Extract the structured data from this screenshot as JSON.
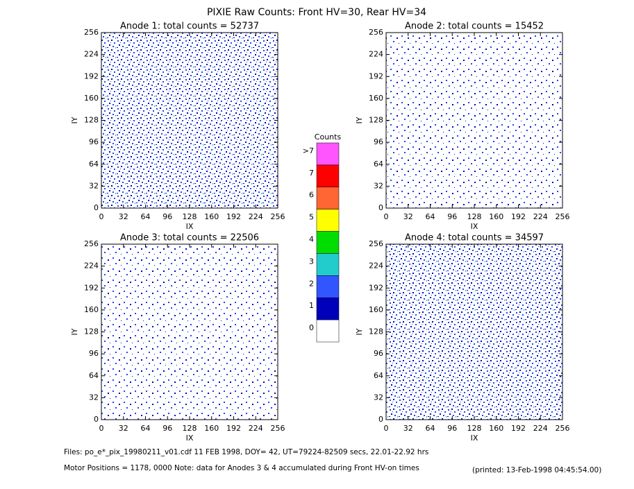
{
  "title": "PIXIE Raw Counts:  Front HV=30, Rear HV=34",
  "chart_data": [
    {
      "type": "heatmap",
      "title": "Anode 1: total counts = 52737",
      "xlabel": "IX",
      "ylabel": "IY",
      "xlim": [
        0,
        256
      ],
      "ylim": [
        0,
        256
      ],
      "xticks": [
        0,
        32,
        64,
        96,
        128,
        160,
        192,
        224,
        256
      ],
      "yticks": [
        0,
        32,
        64,
        96,
        128,
        160,
        192,
        224,
        256
      ],
      "density": "high"
    },
    {
      "type": "heatmap",
      "title": "Anode 2: total counts = 15452",
      "xlabel": "IX",
      "ylabel": "IY",
      "xlim": [
        0,
        256
      ],
      "ylim": [
        0,
        256
      ],
      "xticks": [
        0,
        32,
        64,
        96,
        128,
        160,
        192,
        224,
        256
      ],
      "yticks": [
        0,
        32,
        64,
        96,
        128,
        160,
        192,
        224,
        256
      ],
      "density": "low"
    },
    {
      "type": "heatmap",
      "title": "Anode 3: total counts = 22506",
      "xlabel": "IX",
      "ylabel": "IY",
      "xlim": [
        0,
        256
      ],
      "ylim": [
        0,
        256
      ],
      "xticks": [
        0,
        32,
        64,
        96,
        128,
        160,
        192,
        224,
        256
      ],
      "yticks": [
        0,
        32,
        64,
        96,
        128,
        160,
        192,
        224,
        256
      ],
      "density": "low"
    },
    {
      "type": "heatmap",
      "title": "Anode 4: total counts = 34597",
      "xlabel": "IX",
      "ylabel": "IY",
      "xlim": [
        0,
        256
      ],
      "ylim": [
        0,
        256
      ],
      "xticks": [
        0,
        32,
        64,
        96,
        128,
        160,
        192,
        224,
        256
      ],
      "yticks": [
        0,
        32,
        64,
        96,
        128,
        160,
        192,
        224,
        256
      ],
      "density": "high"
    }
  ],
  "colorbar": {
    "title": "Counts",
    "labels": [
      ">7",
      "7",
      "6",
      "5",
      "4",
      "3",
      "2",
      "1",
      "0"
    ],
    "colors": [
      "#ff55ff",
      "#ff0000",
      "#ff6633",
      "#ffff00",
      "#00dd00",
      "#22cccc",
      "#3355ff",
      "#0000bb",
      "#ffffff"
    ]
  },
  "footer": {
    "files": "Files: po_e*_pix_19980211_v01.cdf    11 FEB 1998, DOY= 42, UT=79224-82509 secs, 22.01-22.92 hrs",
    "motor": "Motor Positions = 1178, 0000   Note: data for Anodes 3 & 4 accumulated during Front HV-on times",
    "printed": "(printed: 13-Feb-1998 04:45:54.00)"
  }
}
